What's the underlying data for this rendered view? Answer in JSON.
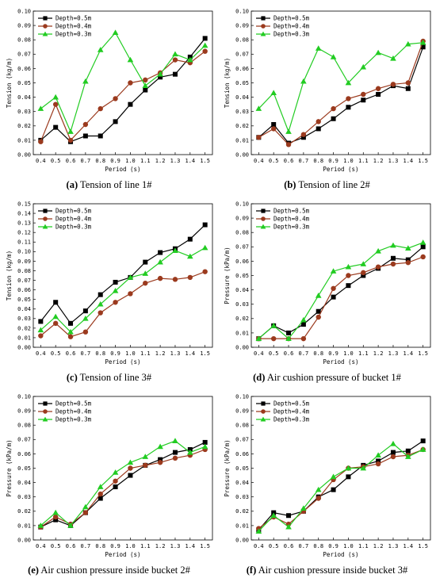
{
  "chart_data": [
    {
      "type": "line",
      "caption_id": "(a)",
      "caption": "Tension of line 1#",
      "xlabel": "Period (s)",
      "ylabel": "Tension (kg/m)",
      "x": [
        0.4,
        0.5,
        0.6,
        0.7,
        0.8,
        0.9,
        1.0,
        1.1,
        1.2,
        1.3,
        1.4,
        1.5
      ],
      "xticks": [
        "0.4",
        "0.5",
        "0.6",
        "0.7",
        "0.8",
        "0.9",
        "1.0",
        "1.1",
        "1.2",
        "1.3",
        "1.4",
        "1.5"
      ],
      "ylim": [
        0,
        0.1
      ],
      "yticks": [
        "0.00",
        "0.01",
        "0.02",
        "0.03",
        "0.04",
        "0.05",
        "0.06",
        "0.07",
        "0.08",
        "0.09",
        "0.10"
      ],
      "legend_position": "top-left",
      "series": [
        {
          "name": "Depth=0.5m",
          "color": "#000000",
          "marker": "square",
          "values": [
            0.01,
            0.019,
            0.009,
            0.013,
            0.013,
            0.023,
            0.035,
            0.045,
            0.054,
            0.056,
            0.068,
            0.081
          ]
        },
        {
          "name": "Depth=0.4m",
          "color": "#9b3a1e",
          "marker": "circle",
          "values": [
            0.009,
            0.035,
            0.01,
            0.021,
            0.032,
            0.039,
            0.05,
            0.052,
            0.057,
            0.066,
            0.064,
            0.072
          ]
        },
        {
          "name": "Depth=0.3m",
          "color": "#22cc22",
          "marker": "triangle",
          "values": [
            0.032,
            0.04,
            0.016,
            0.051,
            0.073,
            0.085,
            0.066,
            0.048,
            0.056,
            0.07,
            0.066,
            0.076
          ]
        }
      ]
    },
    {
      "type": "line",
      "caption_id": "(b)",
      "caption": "Tension of line 2#",
      "xlabel": "Period (s)",
      "ylabel": "Tension (kg/m)",
      "x": [
        0.4,
        0.5,
        0.6,
        0.7,
        0.8,
        0.9,
        1.0,
        1.1,
        1.2,
        1.3,
        1.4,
        1.5
      ],
      "xticks": [
        "0.4",
        "0.5",
        "0.6",
        "0.7",
        "0.8",
        "0.9",
        "1.0",
        "1.1",
        "1.2",
        "1.3",
        "1.4",
        "1.5"
      ],
      "ylim": [
        0,
        0.1
      ],
      "yticks": [
        "0.00",
        "0.01",
        "0.02",
        "0.03",
        "0.04",
        "0.05",
        "0.06",
        "0.07",
        "0.08",
        "0.09",
        "0.10"
      ],
      "legend_position": "top-left",
      "series": [
        {
          "name": "Depth=0.5m",
          "color": "#000000",
          "marker": "square",
          "values": [
            0.012,
            0.021,
            0.008,
            0.012,
            0.018,
            0.025,
            0.033,
            0.038,
            0.042,
            0.048,
            0.046,
            0.075
          ]
        },
        {
          "name": "Depth=0.4m",
          "color": "#9b3a1e",
          "marker": "circle",
          "values": [
            0.012,
            0.018,
            0.007,
            0.014,
            0.023,
            0.032,
            0.039,
            0.042,
            0.046,
            0.049,
            0.05,
            0.079
          ]
        },
        {
          "name": "Depth=0.3m",
          "color": "#22cc22",
          "marker": "triangle",
          "values": [
            0.032,
            0.043,
            0.016,
            0.051,
            0.074,
            0.068,
            0.05,
            0.061,
            0.071,
            0.067,
            0.077,
            0.078
          ]
        }
      ]
    },
    {
      "type": "line",
      "caption_id": "(c)",
      "caption": "Tension of line 3#",
      "xlabel": "Period (s)",
      "ylabel": "Tension (kg/m)",
      "x": [
        0.4,
        0.5,
        0.6,
        0.7,
        0.8,
        0.9,
        1.0,
        1.1,
        1.2,
        1.3,
        1.4,
        1.5
      ],
      "xticks": [
        "0.4",
        "0.5",
        "0.6",
        "0.7",
        "0.8",
        "0.9",
        "1.0",
        "1.1",
        "1.2",
        "1.3",
        "1.4",
        "1.5"
      ],
      "ylim": [
        0,
        0.15
      ],
      "yticks": [
        "0.00",
        "0.01",
        "0.02",
        "0.03",
        "0.04",
        "0.05",
        "0.06",
        "0.07",
        "0.08",
        "0.09",
        "0.10",
        "0.11",
        "0.12",
        "0.13",
        "0.14",
        "0.15"
      ],
      "legend_position": "top-left",
      "series": [
        {
          "name": "Depth=0.5m",
          "color": "#000000",
          "marker": "square",
          "values": [
            0.027,
            0.047,
            0.025,
            0.038,
            0.055,
            0.068,
            0.073,
            0.089,
            0.099,
            0.103,
            0.113,
            0.128
          ]
        },
        {
          "name": "Depth=0.4m",
          "color": "#9b3a1e",
          "marker": "circle",
          "values": [
            0.012,
            0.025,
            0.011,
            0.016,
            0.036,
            0.047,
            0.056,
            0.067,
            0.072,
            0.071,
            0.073,
            0.079
          ]
        },
        {
          "name": "Depth=0.3m",
          "color": "#22cc22",
          "marker": "triangle",
          "values": [
            0.018,
            0.032,
            0.016,
            0.03,
            0.045,
            0.059,
            0.073,
            0.077,
            0.089,
            0.101,
            0.095,
            0.104
          ]
        }
      ]
    },
    {
      "type": "line",
      "caption_id": "(d)",
      "caption": "Air cushion pressure of bucket 1#",
      "xlabel": "Period (s)",
      "ylabel": "Pressure (kPa/m)",
      "x": [
        0.4,
        0.5,
        0.6,
        0.7,
        0.8,
        0.9,
        1.0,
        1.1,
        1.2,
        1.3,
        1.4,
        1.5
      ],
      "xticks": [
        "0.4",
        "0.5",
        "0.6",
        "0.7",
        "0.8",
        "0.9",
        "1.0",
        "1.1",
        "1.2",
        "1.3",
        "1.4",
        "1.5"
      ],
      "ylim": [
        0,
        0.1
      ],
      "yticks": [
        "0.00",
        "0.01",
        "0.02",
        "0.03",
        "0.04",
        "0.05",
        "0.06",
        "0.07",
        "0.08",
        "0.09",
        "0.10"
      ],
      "legend_position": "top-left",
      "series": [
        {
          "name": "Depth=0.5m",
          "color": "#000000",
          "marker": "square",
          "values": [
            0.006,
            0.015,
            0.01,
            0.016,
            0.025,
            0.035,
            0.043,
            0.05,
            0.055,
            0.062,
            0.061,
            0.07
          ]
        },
        {
          "name": "Depth=0.4m",
          "color": "#9b3a1e",
          "marker": "circle",
          "values": [
            0.006,
            0.006,
            0.006,
            0.006,
            0.021,
            0.041,
            0.05,
            0.052,
            0.056,
            0.058,
            0.059,
            0.063
          ]
        },
        {
          "name": "Depth=0.3m",
          "color": "#22cc22",
          "marker": "triangle",
          "values": [
            0.006,
            0.015,
            0.006,
            0.019,
            0.036,
            0.053,
            0.056,
            0.058,
            0.067,
            0.071,
            0.069,
            0.073
          ]
        }
      ]
    },
    {
      "type": "line",
      "caption_id": "(e)",
      "caption": "Air cushion pressure inside bucket 2#",
      "xlabel": "Period (s)",
      "ylabel": "Pressure (kPa/m)",
      "x": [
        0.4,
        0.5,
        0.6,
        0.7,
        0.8,
        0.9,
        1.0,
        1.1,
        1.2,
        1.3,
        1.4,
        1.5
      ],
      "xticks": [
        "0.4",
        "0.5",
        "0.6",
        "0.7",
        "0.8",
        "0.9",
        "1.0",
        "1.1",
        "1.2",
        "1.3",
        "1.4",
        "1.5"
      ],
      "ylim": [
        0,
        0.1
      ],
      "yticks": [
        "0.00",
        "0.01",
        "0.02",
        "0.03",
        "0.04",
        "0.05",
        "0.06",
        "0.07",
        "0.08",
        "0.09",
        "0.10"
      ],
      "legend_position": "top-left",
      "series": [
        {
          "name": "Depth=0.5m",
          "color": "#000000",
          "marker": "square",
          "values": [
            0.009,
            0.014,
            0.01,
            0.019,
            0.029,
            0.037,
            0.045,
            0.052,
            0.056,
            0.061,
            0.063,
            0.068
          ]
        },
        {
          "name": "Depth=0.4m",
          "color": "#9b3a1e",
          "marker": "circle",
          "values": [
            0.009,
            0.016,
            0.011,
            0.019,
            0.032,
            0.041,
            0.05,
            0.052,
            0.054,
            0.057,
            0.059,
            0.063
          ]
        },
        {
          "name": "Depth=0.3m",
          "color": "#22cc22",
          "marker": "triangle",
          "values": [
            0.01,
            0.019,
            0.01,
            0.023,
            0.037,
            0.047,
            0.054,
            0.058,
            0.065,
            0.069,
            0.061,
            0.065
          ]
        }
      ]
    },
    {
      "type": "line",
      "caption_id": "(f)",
      "caption": "Air cushion pressure inside bucket 3#",
      "xlabel": "Period (s)",
      "ylabel": "Pressure (kPa/m)",
      "x": [
        0.4,
        0.5,
        0.6,
        0.7,
        0.8,
        0.9,
        1.0,
        1.1,
        1.2,
        1.3,
        1.4,
        1.5
      ],
      "xticks": [
        "0.4",
        "0.5",
        "0.6",
        "0.7",
        "0.8",
        "0.9",
        "1.0",
        "1.1",
        "1.2",
        "1.3",
        "1.4",
        "1.5"
      ],
      "ylim": [
        0,
        0.1
      ],
      "yticks": [
        "0.00",
        "0.01",
        "0.02",
        "0.03",
        "0.04",
        "0.05",
        "0.06",
        "0.07",
        "0.08",
        "0.09",
        "0.10"
      ],
      "legend_position": "top-left",
      "series": [
        {
          "name": "Depth=0.5m",
          "color": "#000000",
          "marker": "square",
          "values": [
            0.007,
            0.019,
            0.017,
            0.02,
            0.03,
            0.035,
            0.044,
            0.052,
            0.055,
            0.061,
            0.062,
            0.069
          ]
        },
        {
          "name": "Depth=0.4m",
          "color": "#9b3a1e",
          "marker": "circle",
          "values": [
            0.008,
            0.016,
            0.011,
            0.02,
            0.029,
            0.042,
            0.05,
            0.051,
            0.053,
            0.058,
            0.059,
            0.063
          ]
        },
        {
          "name": "Depth=0.3m",
          "color": "#22cc22",
          "marker": "triangle",
          "values": [
            0.006,
            0.017,
            0.009,
            0.022,
            0.035,
            0.044,
            0.05,
            0.05,
            0.059,
            0.067,
            0.058,
            0.063
          ]
        }
      ]
    }
  ]
}
